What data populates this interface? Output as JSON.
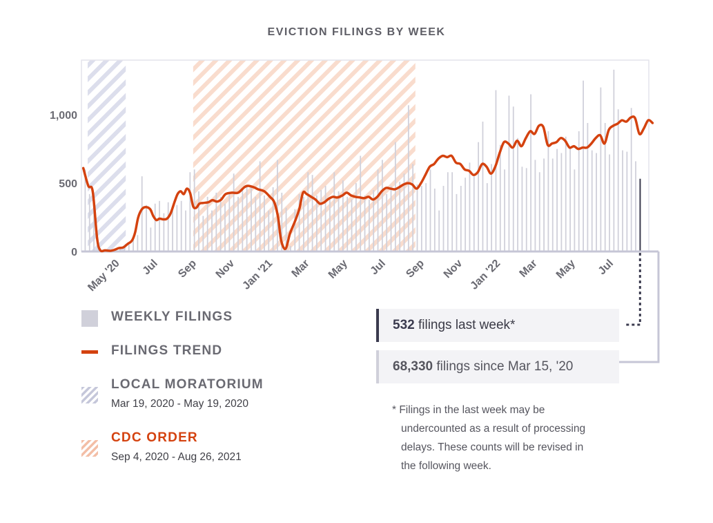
{
  "chart_data": {
    "type": "bar+line",
    "title": "EVICTION FILINGS BY WEEK",
    "ylim": [
      0,
      1400
    ],
    "y_ticks": [
      0,
      500,
      1000
    ],
    "y_tick_labels": [
      "0",
      "500",
      "1,000"
    ],
    "x_range": [
      "2020-03-09",
      "2022-09-04"
    ],
    "x_ticks": [
      {
        "date": "2020-05-01",
        "label": "May '20"
      },
      {
        "date": "2020-07-01",
        "label": "Jul"
      },
      {
        "date": "2020-09-01",
        "label": "Sep"
      },
      {
        "date": "2020-11-01",
        "label": "Nov"
      },
      {
        "date": "2021-01-01",
        "label": "Jan '21"
      },
      {
        "date": "2021-03-01",
        "label": "Mar"
      },
      {
        "date": "2021-05-01",
        "label": "May"
      },
      {
        "date": "2021-07-01",
        "label": "Jul"
      },
      {
        "date": "2021-09-01",
        "label": "Sep"
      },
      {
        "date": "2021-11-01",
        "label": "Nov"
      },
      {
        "date": "2022-01-01",
        "label": "Jan '22"
      },
      {
        "date": "2022-03-01",
        "label": "Mar"
      },
      {
        "date": "2022-05-01",
        "label": "May"
      },
      {
        "date": "2022-07-01",
        "label": "Jul"
      }
    ],
    "series": [
      {
        "name": "WEEKLY FILINGS",
        "type": "bar",
        "color": "#d0d0da",
        "start_date": "2020-03-15",
        "interval_days": 7,
        "values": [
          600,
          420,
          350,
          60,
          10,
          5,
          5,
          10,
          20,
          40,
          60,
          90,
          120,
          550,
          340,
          175,
          350,
          370,
          280,
          360,
          300,
          340,
          370,
          300,
          580,
          600,
          440,
          260,
          400,
          300,
          430,
          400,
          350,
          420,
          570,
          400,
          450,
          480,
          470,
          400,
          660,
          410,
          300,
          470,
          670,
          430,
          320,
          40,
          310,
          420,
          400,
          580,
          560,
          410,
          450,
          480,
          380,
          580,
          440,
          520,
          400,
          380,
          500,
          700,
          410,
          380,
          450,
          600,
          670,
          420,
          480,
          800,
          510,
          570,
          1070,
          640,
          490,
          480,
          500,
          600,
          460,
          300,
          480,
          580,
          580,
          420,
          480,
          540,
          650,
          550,
          800,
          950,
          500,
          640,
          1180,
          780,
          600,
          1140,
          1060,
          830,
          620,
          610,
          1150,
          670,
          580,
          680,
          880,
          680,
          750,
          720,
          840,
          760,
          600,
          880,
          1250,
          940,
          740,
          720,
          1200,
          940,
          710,
          1330,
          1040,
          740,
          730,
          1050,
          660,
          532
        ],
        "highlight_last": {
          "value": 532,
          "color": "#3a3a4e"
        }
      },
      {
        "name": "FILINGS TREND",
        "type": "line",
        "color": "#d4420f",
        "points": [
          [
            "2020-03-12",
            610
          ],
          [
            "2020-03-20",
            480
          ],
          [
            "2020-03-27",
            440
          ],
          [
            "2020-04-03",
            100
          ],
          [
            "2020-04-08",
            10
          ],
          [
            "2020-04-16",
            8
          ],
          [
            "2020-04-24",
            5
          ],
          [
            "2020-05-01",
            12
          ],
          [
            "2020-05-08",
            25
          ],
          [
            "2020-05-15",
            30
          ],
          [
            "2020-05-22",
            55
          ],
          [
            "2020-05-29",
            80
          ],
          [
            "2020-06-03",
            140
          ],
          [
            "2020-06-08",
            250
          ],
          [
            "2020-06-14",
            310
          ],
          [
            "2020-06-20",
            325
          ],
          [
            "2020-06-27",
            310
          ],
          [
            "2020-07-02",
            260
          ],
          [
            "2020-07-07",
            230
          ],
          [
            "2020-07-12",
            240
          ],
          [
            "2020-07-18",
            235
          ],
          [
            "2020-07-24",
            240
          ],
          [
            "2020-07-30",
            280
          ],
          [
            "2020-08-05",
            360
          ],
          [
            "2020-08-10",
            420
          ],
          [
            "2020-08-15",
            440
          ],
          [
            "2020-08-20",
            420
          ],
          [
            "2020-08-25",
            460
          ],
          [
            "2020-08-30",
            430
          ],
          [
            "2020-09-04",
            330
          ],
          [
            "2020-09-09",
            320
          ],
          [
            "2020-09-14",
            350
          ],
          [
            "2020-09-20",
            355
          ],
          [
            "2020-09-28",
            360
          ],
          [
            "2020-10-05",
            375
          ],
          [
            "2020-10-12",
            365
          ],
          [
            "2020-10-19",
            380
          ],
          [
            "2020-10-26",
            420
          ],
          [
            "2020-11-05",
            430
          ],
          [
            "2020-11-15",
            430
          ],
          [
            "2020-11-25",
            470
          ],
          [
            "2020-12-01",
            480
          ],
          [
            "2020-12-10",
            470
          ],
          [
            "2020-12-17",
            455
          ],
          [
            "2020-12-27",
            440
          ],
          [
            "2021-01-05",
            400
          ],
          [
            "2021-01-12",
            360
          ],
          [
            "2021-01-18",
            250
          ],
          [
            "2021-01-23",
            80
          ],
          [
            "2021-01-30",
            20
          ],
          [
            "2021-02-06",
            130
          ],
          [
            "2021-02-14",
            220
          ],
          [
            "2021-02-21",
            310
          ],
          [
            "2021-02-27",
            430
          ],
          [
            "2021-03-05",
            420
          ],
          [
            "2021-03-12",
            400
          ],
          [
            "2021-03-19",
            380
          ],
          [
            "2021-03-26",
            350
          ],
          [
            "2021-04-02",
            360
          ],
          [
            "2021-04-09",
            385
          ],
          [
            "2021-04-16",
            400
          ],
          [
            "2021-04-23",
            395
          ],
          [
            "2021-05-01",
            410
          ],
          [
            "2021-05-08",
            430
          ],
          [
            "2021-05-15",
            410
          ],
          [
            "2021-05-22",
            400
          ],
          [
            "2021-05-29",
            395
          ],
          [
            "2021-06-05",
            390
          ],
          [
            "2021-06-12",
            400
          ],
          [
            "2021-06-19",
            380
          ],
          [
            "2021-06-26",
            400
          ],
          [
            "2021-07-03",
            440
          ],
          [
            "2021-07-10",
            465
          ],
          [
            "2021-07-17",
            460
          ],
          [
            "2021-07-24",
            455
          ],
          [
            "2021-07-31",
            470
          ],
          [
            "2021-08-07",
            490
          ],
          [
            "2021-08-14",
            500
          ],
          [
            "2021-08-21",
            490
          ],
          [
            "2021-08-28",
            460
          ],
          [
            "2021-09-04",
            500
          ],
          [
            "2021-09-11",
            560
          ],
          [
            "2021-09-18",
            620
          ],
          [
            "2021-09-25",
            640
          ],
          [
            "2021-10-02",
            680
          ],
          [
            "2021-10-09",
            700
          ],
          [
            "2021-10-16",
            690
          ],
          [
            "2021-10-23",
            700
          ],
          [
            "2021-10-30",
            650
          ],
          [
            "2021-11-06",
            640
          ],
          [
            "2021-11-13",
            600
          ],
          [
            "2021-11-20",
            590
          ],
          [
            "2021-11-27",
            560
          ],
          [
            "2021-12-04",
            580
          ],
          [
            "2021-12-11",
            640
          ],
          [
            "2021-12-18",
            620
          ],
          [
            "2021-12-25",
            570
          ],
          [
            "2022-01-01",
            620
          ],
          [
            "2022-01-08",
            720
          ],
          [
            "2022-01-15",
            800
          ],
          [
            "2022-01-22",
            790
          ],
          [
            "2022-01-29",
            760
          ],
          [
            "2022-02-05",
            810
          ],
          [
            "2022-02-12",
            770
          ],
          [
            "2022-02-19",
            830
          ],
          [
            "2022-02-26",
            880
          ],
          [
            "2022-03-05",
            860
          ],
          [
            "2022-03-12",
            920
          ],
          [
            "2022-03-19",
            910
          ],
          [
            "2022-03-26",
            780
          ],
          [
            "2022-04-02",
            790
          ],
          [
            "2022-04-09",
            800
          ],
          [
            "2022-04-16",
            830
          ],
          [
            "2022-04-23",
            810
          ],
          [
            "2022-04-30",
            760
          ],
          [
            "2022-05-07",
            770
          ],
          [
            "2022-05-14",
            750
          ],
          [
            "2022-05-21",
            760
          ],
          [
            "2022-05-28",
            760
          ],
          [
            "2022-06-04",
            790
          ],
          [
            "2022-06-11",
            830
          ],
          [
            "2022-06-18",
            850
          ],
          [
            "2022-06-25",
            790
          ],
          [
            "2022-07-02",
            890
          ],
          [
            "2022-07-09",
            920
          ],
          [
            "2022-07-16",
            935
          ],
          [
            "2022-07-23",
            960
          ],
          [
            "2022-07-30",
            950
          ],
          [
            "2022-08-06",
            980
          ],
          [
            "2022-08-13",
            975
          ],
          [
            "2022-08-20",
            860
          ],
          [
            "2022-08-27",
            900
          ],
          [
            "2022-09-03",
            960
          ],
          [
            "2022-09-10",
            940
          ]
        ]
      }
    ],
    "shaded_regions": [
      {
        "name": "LOCAL MORATORIUM",
        "start": "2020-03-19",
        "end": "2020-05-19",
        "color": "#cfd1e3"
      },
      {
        "name": "CDC ORDER",
        "start": "2020-09-04",
        "end": "2021-08-26",
        "color": "#f4c8b4"
      }
    ],
    "grid": false
  },
  "legend": {
    "weekly": {
      "label": "WEEKLY FILINGS",
      "color": "#d0d0da"
    },
    "trend": {
      "label": "FILINGS TREND",
      "color": "#d4420f"
    },
    "moratorium": {
      "label": "LOCAL MORATORIUM",
      "dates": "Mar 19, 2020 - May 19, 2020",
      "color": "#c5c7da"
    },
    "cdc": {
      "label": "CDC ORDER",
      "dates": "Sep 4, 2020 - Aug 26, 2021",
      "color": "#d4420f"
    }
  },
  "stats": {
    "last_week_value": "532",
    "last_week_text": " filings last week*",
    "since_value": "68,330",
    "since_text": " filings since Mar 15, '20"
  },
  "note": {
    "line1": "* Filings in the last week may be",
    "line2": "undercounted as a result of processing",
    "line3": "delays. These counts will be revised in",
    "line4": "the following week."
  }
}
